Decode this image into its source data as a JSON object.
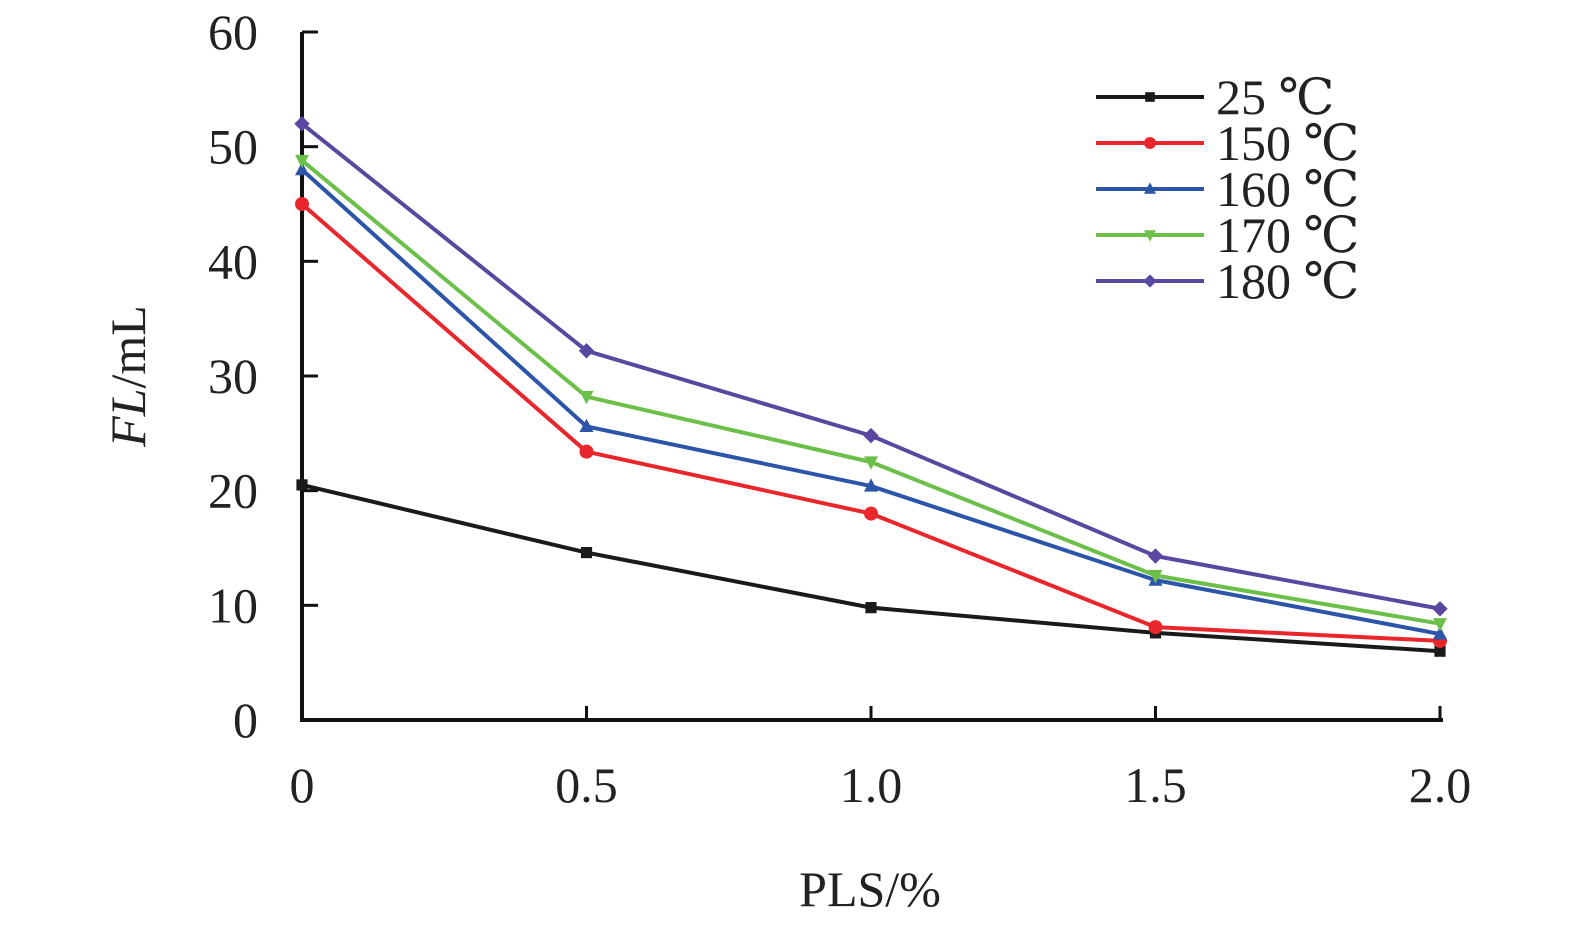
{
  "chart_data": {
    "type": "line",
    "xlabel": "PLS/%",
    "ylabel_italic": "FL",
    "ylabel_unit": "/mL",
    "x": [
      0,
      0.5,
      1.0,
      1.5,
      2.0
    ],
    "x_tick_labels": [
      "0",
      "0.5",
      "1.0",
      "1.5",
      "2.0"
    ],
    "y_ticks": [
      0,
      10,
      20,
      30,
      40,
      50,
      60
    ],
    "y_tick_labels": [
      "0",
      "10",
      "20",
      "30",
      "40",
      "50",
      "60"
    ],
    "xlim": [
      0,
      2.0
    ],
    "ylim": [
      0,
      60
    ],
    "grid": false,
    "legend_position": "top-right",
    "series": [
      {
        "name": "25 ℃",
        "color": "#1a1a1a",
        "marker": "square",
        "values": [
          20.5,
          14.6,
          9.8,
          7.6,
          6.0
        ]
      },
      {
        "name": "150 ℃",
        "color": "#e8262b",
        "marker": "circle",
        "values": [
          45.0,
          23.4,
          18.0,
          8.1,
          6.9
        ]
      },
      {
        "name": "160 ℃",
        "color": "#2c54a8",
        "marker": "triangle-up",
        "values": [
          48.0,
          25.6,
          20.4,
          12.2,
          7.5
        ]
      },
      {
        "name": "170 ℃",
        "color": "#6cc04a",
        "marker": "triangle-down",
        "values": [
          48.8,
          28.2,
          22.5,
          12.6,
          8.4
        ]
      },
      {
        "name": "180 ℃",
        "color": "#5a47a0",
        "marker": "diamond",
        "values": [
          52.0,
          32.2,
          24.8,
          14.3,
          9.7
        ]
      }
    ]
  }
}
